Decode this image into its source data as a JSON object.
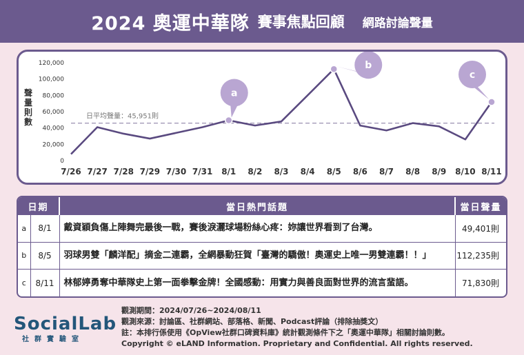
{
  "header": {
    "title_main": "2024 奧運中華隊",
    "title_sub": "賽事焦點回顧",
    "title_right": "網路討論聲量"
  },
  "chart_data": {
    "type": "line",
    "title": "2024 奧運中華隊 賽事焦點回顧 網路討論聲量",
    "ylabel": "聲量則數",
    "categories": [
      "7/26",
      "7/27",
      "7/28",
      "7/29",
      "7/30",
      "7/31",
      "8/1",
      "8/2",
      "8/3",
      "8/4",
      "8/5",
      "8/6",
      "8/7",
      "8/8",
      "8/9",
      "8/10",
      "8/11"
    ],
    "values": [
      8000,
      41000,
      33000,
      27000,
      34000,
      41000,
      49401,
      43000,
      48000,
      80000,
      112235,
      43000,
      37000,
      46000,
      42000,
      26000,
      71830
    ],
    "yticks": [
      "0",
      "20,000",
      "40,000",
      "60,000",
      "80,000",
      "100,000",
      "120,000"
    ],
    "ylim": [
      0,
      120000
    ],
    "average": {
      "label": "日平均聲量：45,951則",
      "value": 45951
    },
    "annotations": [
      {
        "label": "a",
        "category": "8/1",
        "value": 49401
      },
      {
        "label": "b",
        "category": "8/5",
        "value": 112235
      },
      {
        "label": "c",
        "category": "8/11",
        "value": 71830
      }
    ],
    "colors": {
      "line": "#5a4a80",
      "bubble": "#b9a6d2",
      "average": "#9a8fb0"
    },
    "grid": false
  },
  "table": {
    "headers": {
      "date": "日期",
      "topic": "當日熱門話題",
      "volume": "當日聲量"
    },
    "rows": [
      {
        "letter": "a",
        "date": "8/1",
        "topic": "戴資穎負傷上陣舞完最後一戰，賽後淚灑球場粉絲心疼：妳讓世界看到了台灣。",
        "volume": "49,401則"
      },
      {
        "letter": "b",
        "date": "8/5",
        "topic": "羽球男雙「麟洋配」摘金二連霸，全網暴動狂賀「臺灣的驕傲！奧運史上唯一男雙連霸！！」",
        "volume": "112,235則"
      },
      {
        "letter": "c",
        "date": "8/11",
        "topic": "林郁婷勇奪中華隊史上第一面拳擊金牌！全國感動：用實力與善良面對世界的流言蜚語。",
        "volume": "71,830則"
      }
    ]
  },
  "footer": {
    "logo_text": "SocialLab",
    "logo_sub": "社群實驗室",
    "period": "觀測期間：2024/07/26~2024/08/11",
    "source": "觀測來源：討論區、社群網站、部落格、新聞、Podcast評論（排除抽獎文）",
    "note": "註：本排行係使用《OpView社群口碑資料庫》統計觀測條件下之「奧運中華隊」相關討論則數。",
    "copyright": "Copyright © eLAND Information. Proprietary and Confidential. All rights reserved."
  }
}
